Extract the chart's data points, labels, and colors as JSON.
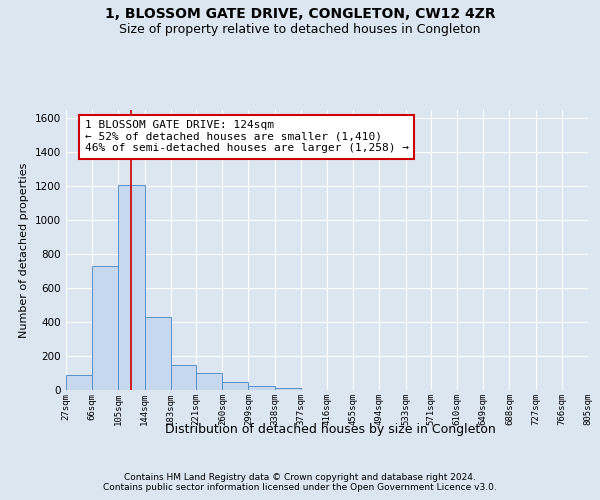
{
  "title": "1, BLOSSOM GATE DRIVE, CONGLETON, CW12 4ZR",
  "subtitle": "Size of property relative to detached houses in Congleton",
  "xlabel": "Distribution of detached houses by size in Congleton",
  "ylabel": "Number of detached properties",
  "footer_line1": "Contains HM Land Registry data © Crown copyright and database right 2024.",
  "footer_line2": "Contains public sector information licensed under the Open Government Licence v3.0.",
  "bar_left_edges": [
    27,
    66,
    105,
    144,
    183,
    221,
    260,
    299,
    338,
    377,
    416,
    455,
    494,
    533,
    571,
    610,
    649,
    688,
    727,
    766
  ],
  "bar_widths": [
    39,
    39,
    39,
    39,
    38,
    39,
    39,
    39,
    39,
    39,
    39,
    39,
    39,
    38,
    39,
    39,
    39,
    39,
    39,
    39
  ],
  "bar_heights": [
    90,
    730,
    1210,
    430,
    150,
    100,
    50,
    25,
    10,
    0,
    0,
    0,
    0,
    0,
    0,
    0,
    0,
    0,
    0,
    0
  ],
  "bar_color": "#c5d8ed",
  "bar_edge_color": "#5b8fc9",
  "property_line_x": 124,
  "property_line_color": "#cc0000",
  "annotation_text": "1 BLOSSOM GATE DRIVE: 124sqm\n← 52% of detached houses are smaller (1,410)\n46% of semi-detached houses are larger (1,258) →",
  "annotation_box_color": "#cc0000",
  "ylim": [
    0,
    1650
  ],
  "xlim": [
    27,
    805
  ],
  "tick_labels": [
    "27sqm",
    "66sqm",
    "105sqm",
    "144sqm",
    "183sqm",
    "221sqm",
    "260sqm",
    "299sqm",
    "338sqm",
    "377sqm",
    "416sqm",
    "455sqm",
    "494sqm",
    "533sqm",
    "571sqm",
    "610sqm",
    "649sqm",
    "688sqm",
    "727sqm",
    "766sqm",
    "805sqm"
  ],
  "tick_positions": [
    27,
    66,
    105,
    144,
    183,
    221,
    260,
    299,
    338,
    377,
    416,
    455,
    494,
    533,
    571,
    610,
    649,
    688,
    727,
    766,
    805
  ],
  "background_color": "#dce6f1",
  "plot_background_color": "#dce6f1",
  "grid_color": "#ffffff",
  "title_fontsize": 10,
  "subtitle_fontsize": 9,
  "ylabel_fontsize": 8,
  "xlabel_fontsize": 9,
  "tick_fontsize": 6.5,
  "annotation_fontsize": 8,
  "footer_fontsize": 6.5
}
